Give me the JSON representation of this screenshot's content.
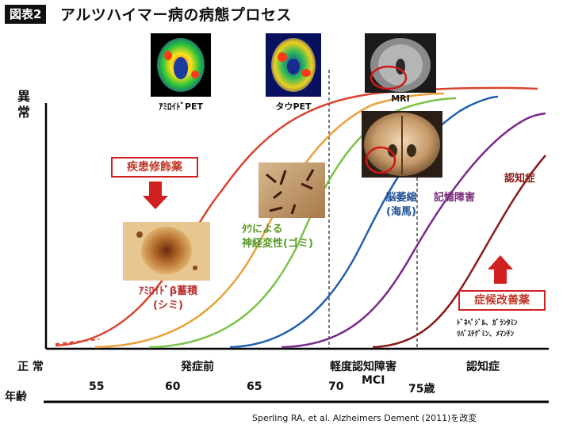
{
  "figure_label": "図表2",
  "title": "アルツハイマー病の病態プロセス",
  "y_axis": {
    "top": "異常",
    "bottom": "正 常"
  },
  "scans": {
    "amyloid_pet": "ｱﾐﾛｲﾄﾞPET",
    "tau_pet": "タウPET",
    "mri": "MRI"
  },
  "annotations": {
    "disease_modifying": "疾患修飾薬",
    "amyloid_line1": "ｱﾐﾛｲﾄﾞβ蓄積",
    "amyloid_line2": "(シミ)",
    "tau_line1": "ﾀｳによる",
    "tau_line2": "神経変性(ゴミ)",
    "atrophy_line1": "脳萎縮",
    "atrophy_line2": "(海馬)",
    "memory": "記憶障害",
    "dementia_curve": "認知症",
    "symptomatic": "症候改善薬",
    "drugs_line1": "ﾄﾞﾈﾍﾟｼﾞﾙ、ｶﾞﾗﾝﾀﾐﾝ",
    "drugs_line2": "ﾘﾊﾞｽﾁｸﾞﾐﾝ、ﾒﾏﾝﾁﾝ"
  },
  "stages": {
    "preclinical": "発症前",
    "mci_jp": "軽度認知障害",
    "mci": "MCI",
    "dementia": "認知症"
  },
  "age_axis": {
    "label": "年齢",
    "ticks": [
      "55",
      "60",
      "65",
      "70",
      "75歳"
    ]
  },
  "citation": "Sperling RA, et al. Alzheimers Dement (2011)を改変",
  "colors": {
    "amyloid": "#d9432f",
    "tau": "#e8a035",
    "neurodegeneration": "#7bc24a",
    "atrophy": "#1f5fb0",
    "memory": "#7a2a8a",
    "dementia": "#8b1a1a",
    "callout": "#d12020"
  }
}
